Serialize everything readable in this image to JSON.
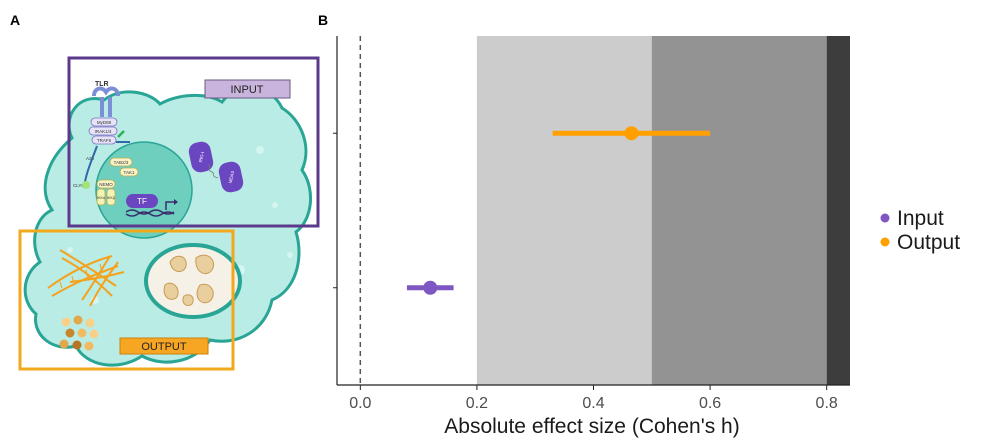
{
  "panels": {
    "a_label": "A",
    "b_label": "B"
  },
  "illustration": {
    "tlr_label": "TLR",
    "input_label": "INPUT",
    "output_label": "OUTPUT",
    "tf_label": "TF",
    "proteins": [
      "MyD88",
      "IRAK1/4",
      "TRAF6",
      "TAB2/3",
      "TAK1",
      "A20",
      "CLYD",
      "NEMO",
      "IKKα",
      "IKKβ",
      "RIG-I",
      "MDA5"
    ],
    "colors": {
      "input_box": "#5b3a8c",
      "output_box": "#f2a81d",
      "input_tag": "#c8b4dc",
      "output_tag": "#f6a623",
      "cell": "#b8ece6",
      "cell_border": "#2aa596",
      "nucleus": "#6ccdbf"
    }
  },
  "chart_data": {
    "type": "scatter",
    "subtype": "point-range",
    "xlabel": "Absolute effect size (Cohen's h)",
    "ylabel": "",
    "xlim": [
      -0.04,
      0.84
    ],
    "xticks": [
      "0.0",
      "0.2",
      "0.4",
      "0.6",
      "0.8"
    ],
    "reference_line": 0,
    "shaded_regions": [
      {
        "from": 0.2,
        "to": 0.5,
        "color": "#cccccc"
      },
      {
        "from": 0.5,
        "to": 0.8,
        "color": "#939393"
      },
      {
        "from": 0.8,
        "to": 0.84,
        "color": "#3d3d3d"
      }
    ],
    "series": [
      {
        "name": "Input",
        "color": "#7e57c2",
        "estimate": 0.12,
        "lower": 0.08,
        "upper": 0.16
      },
      {
        "name": "Output",
        "color": "#ff9f00",
        "estimate": 0.465,
        "lower": 0.33,
        "upper": 0.6
      }
    ],
    "legend_position": "right",
    "grid": false
  }
}
